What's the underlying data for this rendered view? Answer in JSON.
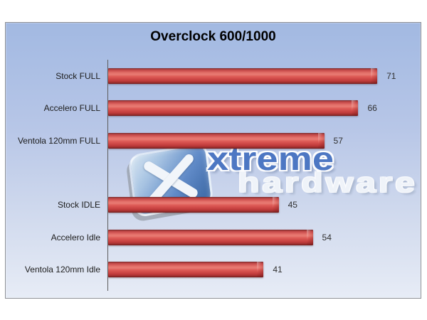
{
  "chart_data": {
    "type": "bar",
    "orientation": "horizontal",
    "title": "Overclock 600/1000",
    "categories": [
      "Stock FULL",
      "Accelero FULL",
      "Ventola 120mm FULL",
      "Stock IDLE",
      "Accelero Idle",
      "Ventola 120mm Idle"
    ],
    "values": [
      71,
      66,
      57,
      45,
      54,
      41
    ],
    "xlim": [
      0,
      80
    ],
    "xlabel": "",
    "ylabel": "",
    "grid": false,
    "legend": "none",
    "data_labels": true,
    "gap_after_index": 2,
    "bar_color": "#d85450",
    "background_top": "#a2b9e2",
    "background_bottom": "#e7ecf6",
    "axis_color": "#5c5c5c"
  },
  "watermark": {
    "line1": "xtreme",
    "line2": "hardware",
    "logo": "xtremehardware-x-logo",
    "color_primary": "#4a75c2"
  }
}
